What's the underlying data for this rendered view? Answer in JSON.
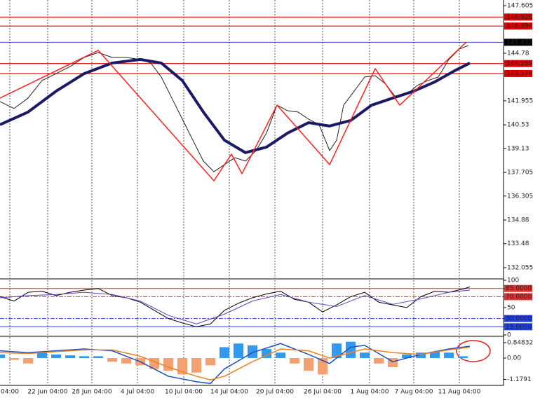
{
  "chart_data": [
    {
      "type": "line",
      "xlim": [
        0,
        718
      ],
      "ylim": [
        131.43,
        147.94
      ],
      "yticks": [
        147.605,
        144.78,
        141.955,
        140.53,
        139.13,
        137.705,
        136.305,
        134.88,
        133.48,
        132.055
      ],
      "levels": [
        {
          "value": 146.929,
          "color": "#e00000"
        },
        {
          "value": 146.394,
          "color": "#e00000"
        },
        {
          "value": 145.432,
          "color": "#2030c0"
        },
        {
          "value": 144.169,
          "color": "#e00000"
        },
        {
          "value": 143.576,
          "color": "#e00000"
        }
      ],
      "series": [
        {
          "color": "#222222",
          "width": 1,
          "x": [
            0,
            20,
            40,
            60,
            80,
            100,
            120,
            140,
            160,
            180,
            200,
            215,
            230,
            245,
            260,
            275,
            290,
            305,
            320,
            335,
            350,
            365,
            380,
            395,
            410,
            425,
            440,
            455,
            470,
            480,
            490,
            505,
            520,
            535,
            550,
            565,
            580,
            595,
            610,
            625,
            640,
            655,
            668
          ],
          "values": [
            141.91,
            141.5,
            142.12,
            143.16,
            143.57,
            143.99,
            144.53,
            144.82,
            144.53,
            144.53,
            144.41,
            144.2,
            143.37,
            142.12,
            140.87,
            139.62,
            138.38,
            137.75,
            138.17,
            138.58,
            138.38,
            139.0,
            140.04,
            141.7,
            141.37,
            141.29,
            140.87,
            140.54,
            139.0,
            139.62,
            141.7,
            142.53,
            143.37,
            143.45,
            142.95,
            142.12,
            142.33,
            142.87,
            143.16,
            143.37,
            144.41,
            145.03,
            145.24
          ]
        },
        {
          "color": "#1a1a66",
          "width": 4,
          "x": [
            0,
            40,
            80,
            120,
            160,
            200,
            230,
            260,
            290,
            320,
            350,
            380,
            410,
            440,
            470,
            500,
            530,
            560,
            590,
            620,
            650,
            670
          ],
          "values": [
            140.54,
            141.29,
            142.53,
            143.57,
            144.2,
            144.41,
            144.2,
            143.16,
            141.29,
            139.62,
            138.88,
            139.21,
            140.04,
            140.66,
            140.46,
            140.79,
            141.7,
            142.12,
            142.53,
            143.08,
            143.78,
            144.2
          ]
        },
        {
          "color": "#ff2020",
          "width": 1.5,
          "x": [
            0,
            140,
            305,
            330,
            345,
            395,
            470,
            535,
            570,
            665
          ],
          "values": [
            142.12,
            144.95,
            137.21,
            138.79,
            137.63,
            141.7,
            138.17,
            143.87,
            141.7,
            145.45
          ]
        }
      ]
    },
    {
      "type": "line",
      "xlim": [
        0,
        718
      ],
      "ylim": [
        0,
        100
      ],
      "yticks": [
        100,
        {
          "value": 85,
          "label": "85.0000"
        },
        {
          "value": 70,
          "label": "70.0000"
        },
        50,
        {
          "value": 30,
          "label": "30.0000"
        },
        {
          "value": 15,
          "label": "15.0000"
        },
        0
      ],
      "series": [
        {
          "color": "#000000",
          "width": 1,
          "x": [
            0,
            20,
            40,
            60,
            80,
            100,
            120,
            140,
            160,
            180,
            200,
            220,
            240,
            260,
            280,
            300,
            320,
            340,
            360,
            380,
            400,
            420,
            440,
            460,
            480,
            500,
            520,
            540,
            560,
            580,
            600,
            620,
            640,
            660,
            670
          ],
          "values": [
            70,
            62,
            78,
            80,
            72,
            78,
            82,
            85,
            72,
            68,
            60,
            45,
            30,
            22,
            15,
            20,
            45,
            58,
            68,
            75,
            80,
            65,
            60,
            42,
            55,
            70,
            78,
            60,
            55,
            50,
            70,
            80,
            78,
            84,
            88
          ]
        },
        {
          "color": "#6040c0",
          "width": 1,
          "x": [
            0,
            40,
            80,
            120,
            160,
            200,
            240,
            280,
            320,
            360,
            400,
            440,
            480,
            520,
            560,
            600,
            640,
            670
          ],
          "values": [
            68,
            72,
            74,
            78,
            74,
            62,
            36,
            20,
            38,
            62,
            74,
            60,
            52,
            72,
            56,
            66,
            78,
            82
          ]
        }
      ]
    },
    {
      "type": "bar",
      "xlim": [
        0,
        718
      ],
      "ylim": [
        -1.427,
        1.157
      ],
      "yticks": [
        0.84832,
        {
          "value": 0,
          "label": "0.00"
        },
        -1.1791
      ],
      "xticks": [
        {
          "value": 14,
          "label": "04:00"
        },
        {
          "value": 68,
          "label": "22 Jun 04:00"
        },
        {
          "value": 131,
          "label": "28 Jun 04:00"
        },
        {
          "value": 196,
          "label": "4 Jul 04:00"
        },
        {
          "value": 262,
          "label": "10 Jul 04:00"
        },
        {
          "value": 327,
          "label": "14 Jul 04:00"
        },
        {
          "value": 392,
          "label": "20 Jul 04:00"
        },
        {
          "value": 460,
          "label": "26 Jul 04:00"
        },
        {
          "value": 527,
          "label": "1 Aug 04:00"
        },
        {
          "value": 590,
          "label": "7 Aug 04:00"
        },
        {
          "value": 655,
          "label": "11 Aug 04:00"
        }
      ],
      "x": [
        0,
        20,
        40,
        60,
        80,
        100,
        120,
        140,
        160,
        180,
        200,
        220,
        240,
        260,
        280,
        300,
        320,
        340,
        360,
        380,
        400,
        420,
        440,
        460,
        480,
        500,
        520,
        540,
        560,
        580,
        600,
        620,
        640,
        660
      ],
      "values": [
        0.2,
        -0.1,
        -0.3,
        0.3,
        0.2,
        0.15,
        0.1,
        0.1,
        -0.2,
        -0.3,
        -0.4,
        -0.6,
        -0.7,
        -0.9,
        -0.8,
        -0.4,
        0.6,
        0.8,
        0.7,
        0.5,
        0.3,
        -0.3,
        -0.7,
        -0.9,
        0.8,
        0.9,
        0.3,
        -0.3,
        -0.5,
        0.2,
        0.3,
        0.35,
        0.3,
        0.1
      ],
      "colors": {
        "positive": "#3399ee",
        "negative": "#f4a070"
      },
      "series": [
        {
          "color": "#1f4fc0",
          "width": 1.5,
          "x": [
            0,
            40,
            80,
            120,
            160,
            200,
            240,
            280,
            300,
            320,
            360,
            400,
            440,
            470,
            500,
            520,
            560,
            600,
            640,
            670
          ],
          "values": [
            0.4,
            0.3,
            0.4,
            0.5,
            0.4,
            -0.2,
            -1.0,
            -1.3,
            -1.4,
            -0.6,
            0.3,
            0.8,
            0.2,
            -0.3,
            0.6,
            0.7,
            -0.2,
            0.2,
            0.5,
            0.65
          ]
        },
        {
          "color": "#f08020",
          "width": 1.5,
          "x": [
            0,
            40,
            80,
            120,
            160,
            200,
            240,
            280,
            300,
            320,
            360,
            400,
            440,
            470,
            500,
            520,
            560,
            600,
            640,
            670
          ],
          "values": [
            0.3,
            0.25,
            0.35,
            0.45,
            0.45,
            0.1,
            -0.5,
            -1.0,
            -1.2,
            -1.0,
            -0.2,
            0.5,
            0.4,
            0.0,
            0.3,
            0.5,
            0.3,
            0.2,
            0.45,
            0.6
          ]
        }
      ]
    }
  ]
}
